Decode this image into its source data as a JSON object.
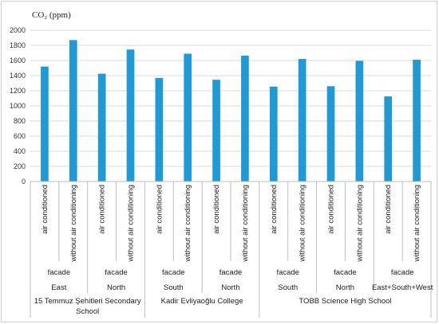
{
  "chart_data": {
    "type": "bar",
    "ylabel": "CO₂ (ppm)",
    "ylim": [
      0,
      2000
    ],
    "yticks": [
      0,
      200,
      400,
      600,
      800,
      1000,
      1200,
      1400,
      1600,
      1800,
      2000
    ],
    "bar_color": "#1f9ad6",
    "grid": true,
    "groups": [
      {
        "condition": "air conditioned",
        "facade_label": "facade",
        "facade": "East",
        "school": "15 Temmuz Şehitleri Secondary School",
        "value": 1520
      },
      {
        "condition": "without air conditioning",
        "facade_label": "facade",
        "facade": "East",
        "school": "15 Temmuz Şehitleri Secondary School",
        "value": 1870
      },
      {
        "condition": "air conditioned",
        "facade_label": "facade",
        "facade": "North",
        "school": "15 Temmuz Şehitleri Secondary School",
        "value": 1425
      },
      {
        "condition": "without air conditioning",
        "facade_label": "facade",
        "facade": "North",
        "school": "15 Temmuz Şehitleri Secondary School",
        "value": 1745
      },
      {
        "condition": "air conditioned",
        "facade_label": "facade",
        "facade": "South",
        "school": "Kadir Evliyaoğlu College",
        "value": 1370
      },
      {
        "condition": "without air conditioning",
        "facade_label": "facade",
        "facade": "South",
        "school": "Kadir Evliyaoğlu College",
        "value": 1690
      },
      {
        "condition": "air conditioned",
        "facade_label": "facade",
        "facade": "North",
        "school": "Kadir Evliyaoğlu College",
        "value": 1345
      },
      {
        "condition": "without air conditioning",
        "facade_label": "facade",
        "facade": "North",
        "school": "Kadir Evliyaoğlu College",
        "value": 1665
      },
      {
        "condition": "air conditioned",
        "facade_label": "facade",
        "facade": "South",
        "school": "TOBB Science High School",
        "value": 1255
      },
      {
        "condition": "without air conditioning",
        "facade_label": "facade",
        "facade": "South",
        "school": "TOBB Science High School",
        "value": 1620
      },
      {
        "condition": "air conditioned",
        "facade_label": "facade",
        "facade": "North",
        "school": "TOBB Science High School",
        "value": 1260
      },
      {
        "condition": "without air conditioning",
        "facade_label": "facade",
        "facade": "North",
        "school": "TOBB Science High School",
        "value": 1595
      },
      {
        "condition": "air conditioned",
        "facade_label": "facade",
        "facade": "East+South+West",
        "school": "TOBB Science High School",
        "value": 1125
      },
      {
        "condition": "without air conditioning",
        "facade_label": "facade",
        "facade": "East+South+West",
        "school": "TOBB Science High School",
        "value": 1610
      }
    ],
    "facade_groups": [
      {
        "facade_label": "facade",
        "facade": "East"
      },
      {
        "facade_label": "facade",
        "facade": "North"
      },
      {
        "facade_label": "facade",
        "facade": "South"
      },
      {
        "facade_label": "facade",
        "facade": "North"
      },
      {
        "facade_label": "facade",
        "facade": "South"
      },
      {
        "facade_label": "facade",
        "facade": "North"
      },
      {
        "facade_label": "facade",
        "facade": "East+South+West"
      }
    ],
    "schools": [
      {
        "lines": [
          "15 Temmuz Şehitleri Secondary",
          "School"
        ],
        "span": 2
      },
      {
        "lines": [
          "Kadir Evliyaoğlu College"
        ],
        "span": 2
      },
      {
        "lines": [
          "TOBB Science High School"
        ],
        "span": 3
      }
    ]
  }
}
